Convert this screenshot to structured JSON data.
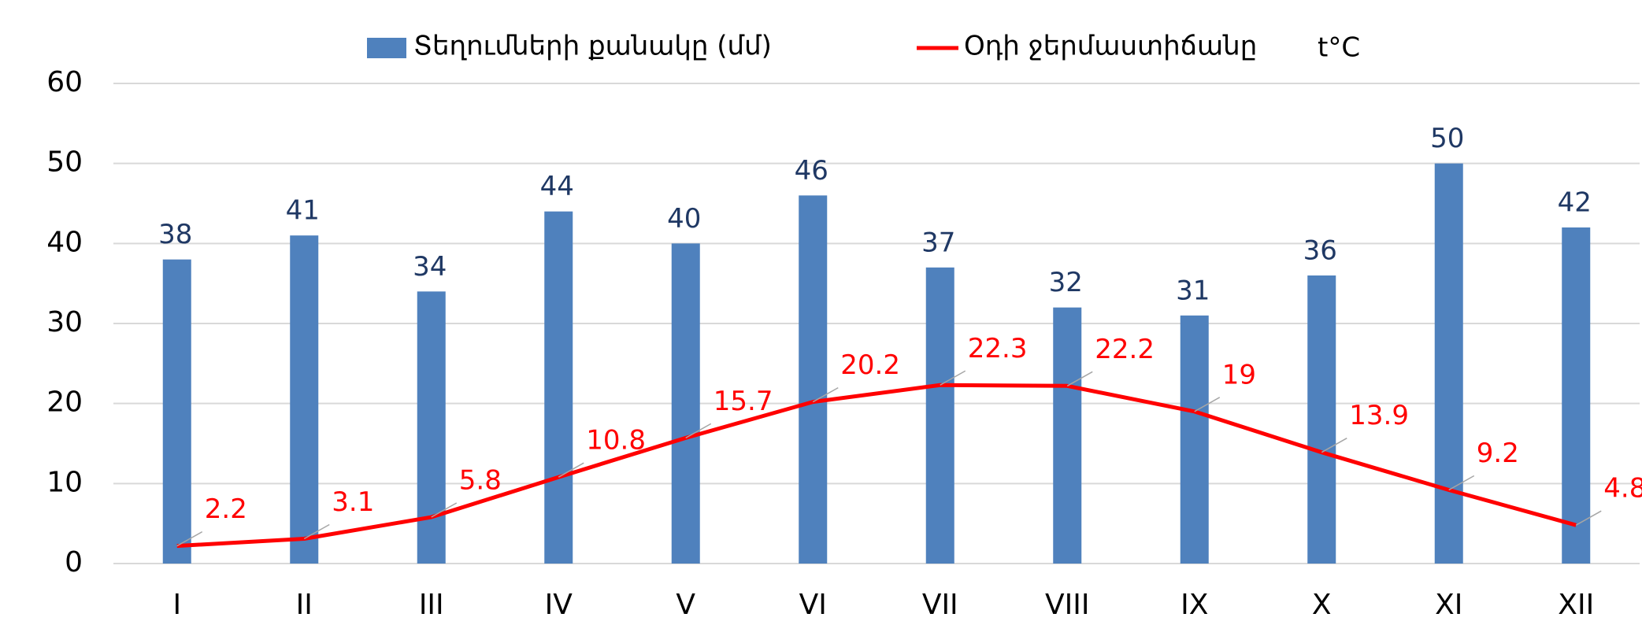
{
  "chart_data": {
    "type": "bar",
    "annotation": "t°C",
    "categories": [
      "I",
      "II",
      "III",
      "IV",
      "V",
      "VI",
      "VII",
      "VIII",
      "IX",
      "X",
      "XI",
      "XII"
    ],
    "series": [
      {
        "name": "Տեղումների քանակը (մմ)",
        "type": "bar",
        "color": "#4f81bd",
        "values": [
          38,
          41,
          34,
          44,
          40,
          46,
          37,
          32,
          31,
          36,
          50,
          42
        ]
      },
      {
        "name": "Օդի ջերմաստիճանը",
        "type": "line",
        "color": "#ff0000",
        "values": [
          2.2,
          3.1,
          5.8,
          10.8,
          15.7,
          20.2,
          22.3,
          22.2,
          19,
          13.9,
          9.2,
          4.8
        ]
      }
    ],
    "ylim": [
      0,
      60
    ],
    "yticks": [
      0,
      10,
      20,
      30,
      40,
      50,
      60
    ],
    "grid": true
  }
}
